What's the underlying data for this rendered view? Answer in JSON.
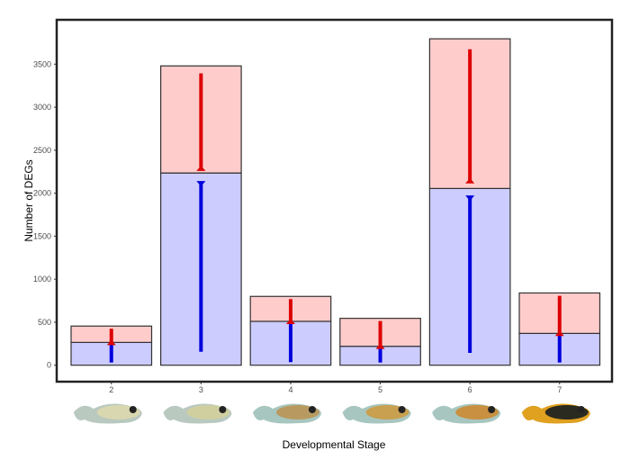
{
  "chart_data": {
    "type": "bar",
    "stacked": true,
    "xlabel": "Developmental Stage",
    "ylabel": "Number of DEGs",
    "categories": [
      "2",
      "3",
      "4",
      "5",
      "6",
      "7"
    ],
    "series": [
      {
        "values": [
          265,
          2235,
          510,
          220,
          2055,
          370
        ],
        "color": "#ccccff",
        "arrow_color": "#0000dd",
        "arrow": "down"
      },
      {
        "values": [
          190,
          1245,
          290,
          325,
          1740,
          470
        ],
        "color": "#ffcccc",
        "arrow_color": "#dd0000",
        "arrow": "up"
      }
    ],
    "ylim": [
      -200,
      3980
    ],
    "yticks": [
      0,
      500,
      1000,
      1500,
      2000,
      2500,
      3000,
      3500
    ],
    "grid": false,
    "legend": "none",
    "x_images": "fish larvae photos for each stage"
  }
}
